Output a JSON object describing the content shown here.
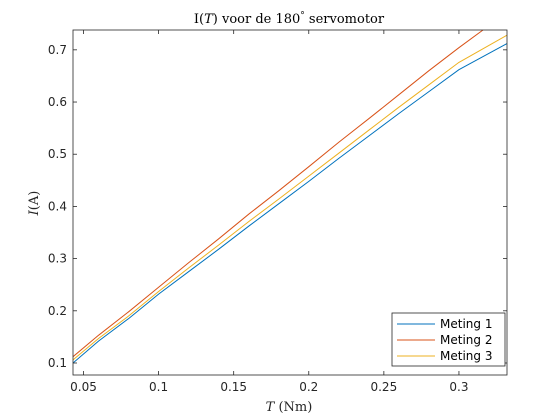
{
  "chart_data": {
    "type": "line",
    "title": "I(T) voor de 180° servomotor",
    "title_parts": {
      "pre": "I(",
      "var": "T",
      "mid": ") voor de 180",
      "deg": "°",
      "post": " servomotor"
    },
    "xlabel": "T (Nm)",
    "xlabel_parts": {
      "var": "T",
      "unit": " (Nm)"
    },
    "ylabel": "I(A)",
    "ylabel_parts": {
      "var": "I",
      "unit": "(A)"
    },
    "xlim": [
      0.043,
      0.332
    ],
    "ylim": [
      0.077,
      0.738
    ],
    "xticks": [
      0.05,
      0.1,
      0.15,
      0.2,
      0.25,
      0.3
    ],
    "xtick_labels": [
      "0.05",
      "0.1",
      "0.15",
      "0.2",
      "0.25",
      "0.3"
    ],
    "yticks": [
      0.1,
      0.2,
      0.3,
      0.4,
      0.5,
      0.6,
      0.7
    ],
    "ytick_labels": [
      "0.1",
      "0.2",
      "0.3",
      "0.4",
      "0.5",
      "0.6",
      "0.7"
    ],
    "grid": false,
    "legend_position": "bottom-right",
    "series": [
      {
        "name": "Meting 1",
        "color": "#0072bd",
        "x": [
          0.043,
          0.06,
          0.08,
          0.1,
          0.12,
          0.14,
          0.16,
          0.18,
          0.2,
          0.22,
          0.24,
          0.26,
          0.28,
          0.3,
          0.332
        ],
        "y": [
          0.1,
          0.142,
          0.185,
          0.232,
          0.275,
          0.318,
          0.362,
          0.405,
          0.448,
          0.492,
          0.535,
          0.578,
          0.62,
          0.662,
          0.712
        ]
      },
      {
        "name": "Meting 2",
        "color": "#d95319",
        "x": [
          0.043,
          0.06,
          0.08,
          0.1,
          0.12,
          0.14,
          0.16,
          0.18,
          0.2,
          0.22,
          0.24,
          0.26,
          0.28,
          0.3,
          0.316
        ],
        "y": [
          0.112,
          0.153,
          0.198,
          0.245,
          0.292,
          0.338,
          0.385,
          0.43,
          0.476,
          0.523,
          0.568,
          0.614,
          0.66,
          0.704,
          0.738
        ]
      },
      {
        "name": "Meting 3",
        "color": "#edb120",
        "x": [
          0.043,
          0.06,
          0.08,
          0.1,
          0.12,
          0.14,
          0.16,
          0.18,
          0.2,
          0.22,
          0.24,
          0.26,
          0.28,
          0.3,
          0.332
        ],
        "y": [
          0.106,
          0.147,
          0.19,
          0.237,
          0.282,
          0.326,
          0.371,
          0.414,
          0.458,
          0.502,
          0.546,
          0.59,
          0.633,
          0.676,
          0.728
        ]
      }
    ]
  }
}
